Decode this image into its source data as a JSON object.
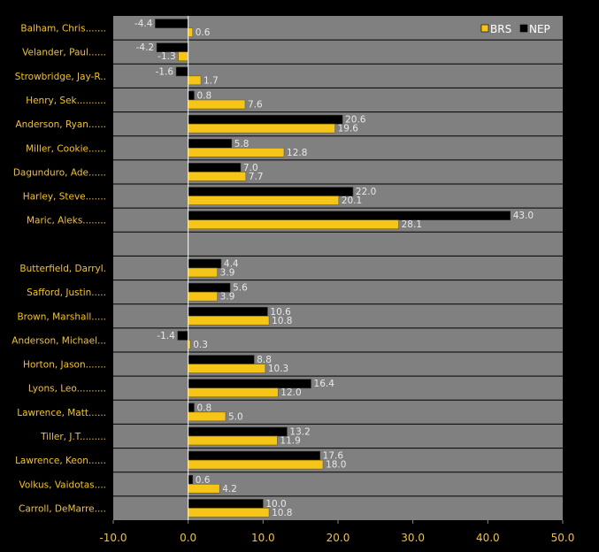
{
  "chart_data": {
    "type": "bar",
    "orientation": "horizontal",
    "categories": [
      "Balham, Chris.......",
      "Velander, Paul......",
      "Strowbridge, Jay-R..",
      "Henry, Sek..........",
      "Anderson, Ryan......",
      "Miller, Cookie......",
      "Dagunduro, Ade......",
      "Harley, Steve.......",
      "Maric, Aleks........",
      "",
      "Butterfield, Darryl.",
      "Safford, Justin.....",
      "Brown, Marshall.....",
      "Anderson, Michael...",
      "Horton, Jason.......",
      "Lyons, Leo..........",
      "Lawrence, Matt......",
      "Tiller, J.T.........",
      "Lawrence, Keon......",
      "Volkus, Vaidotas....",
      "Carroll, DeMarre...."
    ],
    "series": [
      {
        "name": "NEP",
        "color": "#000000",
        "values": [
          -4.4,
          -4.2,
          -1.6,
          0.8,
          20.6,
          5.8,
          7.0,
          22.0,
          43.0,
          null,
          4.4,
          5.6,
          10.6,
          -1.4,
          8.8,
          16.4,
          0.8,
          13.2,
          17.6,
          0.6,
          10.0
        ],
        "labels": [
          "-4.4",
          "-4.2",
          "-1.6",
          "0.8",
          "20.6",
          "5.8",
          "7.0",
          "22.0",
          "43.0",
          "",
          "4.4",
          "5.6",
          "10.6",
          "-1.4",
          "8.8",
          "16.4",
          "0.8",
          "13.2",
          "17.6",
          "0.6",
          "10.0"
        ]
      },
      {
        "name": "BRS",
        "color": "#f5c518",
        "values": [
          0.6,
          -1.3,
          1.7,
          7.6,
          19.6,
          12.8,
          7.7,
          20.1,
          28.1,
          null,
          3.9,
          3.9,
          10.8,
          0.3,
          10.3,
          12.0,
          5.0,
          11.9,
          18.0,
          4.2,
          10.8
        ],
        "labels": [
          "0.6",
          "-1.3",
          "1.7",
          "7.6",
          "19.6",
          "12.8",
          "7.7",
          "20.1",
          "28.1",
          "",
          "3.9",
          "3.9",
          "10.8",
          "0.3",
          "10.3",
          "12.0",
          "5.0",
          "11.9",
          "18.0",
          "4.2",
          "10.8"
        ]
      }
    ],
    "xlim": [
      -10.0,
      50.0
    ],
    "xticks": [
      -10,
      0,
      10,
      20,
      30,
      40,
      50
    ],
    "xtick_labels": [
      "-10.0",
      "0.0",
      "10.0",
      "20.0",
      "30.0",
      "40.0",
      "50.0"
    ],
    "legend": {
      "placement": "top-right",
      "order": [
        "BRS",
        "NEP"
      ]
    },
    "colors": {
      "plot_background": "#808080",
      "page_background": "#000000",
      "label_color": "#f5c518",
      "value_color": "#e8e8e8"
    },
    "grid": false,
    "title": "",
    "xlabel": "",
    "ylabel": ""
  }
}
